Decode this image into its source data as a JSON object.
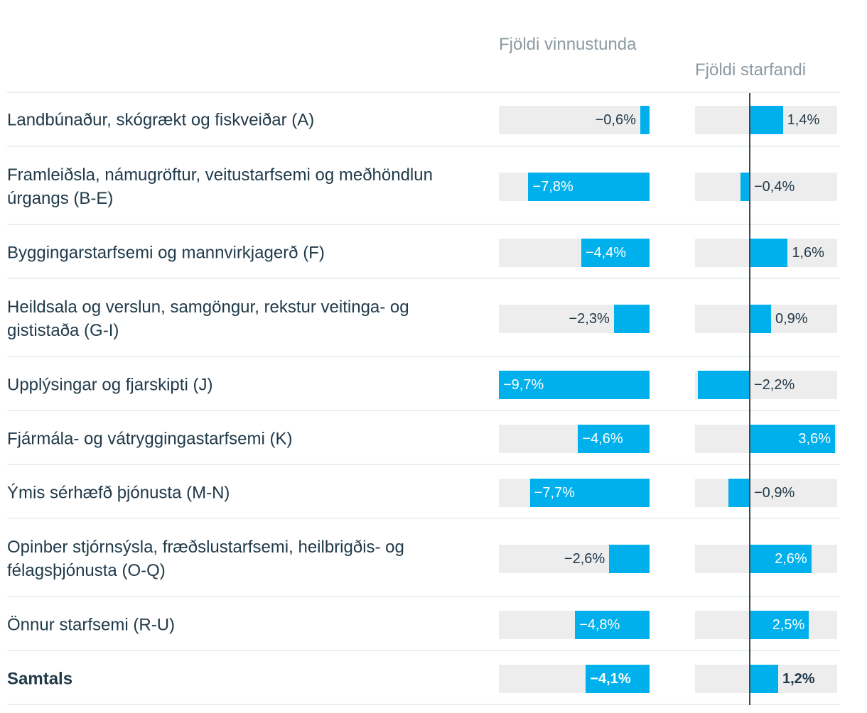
{
  "chart_data": {
    "type": "bar",
    "orientation": "horizontal",
    "columns": [
      {
        "key": "hours",
        "title": "Fjöldi vinnustunda"
      },
      {
        "key": "workers",
        "title": "Fjöldi starfandi"
      }
    ],
    "rows": [
      {
        "label": "Landbúnaður, skógrækt og fiskveiðar (A)",
        "hours": -0.6,
        "hours_label": "−0,6%",
        "workers": 1.4,
        "workers_label": "1,4%",
        "bold": false
      },
      {
        "label": "Framleiðsla, námugröftur, veitustarfsemi og meðhöndlun úrgangs (B-E)",
        "hours": -7.8,
        "hours_label": "−7,8%",
        "workers": -0.4,
        "workers_label": "−0,4%",
        "bold": false
      },
      {
        "label": "Byggingarstarfsemi og mannvirkjagerð (F)",
        "hours": -4.4,
        "hours_label": "−4,4%",
        "workers": 1.6,
        "workers_label": "1,6%",
        "bold": false
      },
      {
        "label": "Heildsala og verslun, samgöngur, rekstur veitinga- og gististaða (G-I)",
        "hours": -2.3,
        "hours_label": "−2,3%",
        "workers": 0.9,
        "workers_label": "0,9%",
        "bold": false
      },
      {
        "label": "Upplýsingar og fjarskipti (J)",
        "hours": -9.7,
        "hours_label": "−9,7%",
        "workers": -2.2,
        "workers_label": "−2,2%",
        "bold": false
      },
      {
        "label": "Fjármála- og vátryggingastarfsemi (K)",
        "hours": -4.6,
        "hours_label": "−4,6%",
        "workers": 3.6,
        "workers_label": "3,6%",
        "bold": false
      },
      {
        "label": "Ýmis sérhæfð þjónusta (M-N)",
        "hours": -7.7,
        "hours_label": "−7,7%",
        "workers": -0.9,
        "workers_label": "−0,9%",
        "bold": false
      },
      {
        "label": "Opinber stjórnsýsla, fræðslustarfsemi, heilbrigðis- og félagsþjónusta (O-Q)",
        "hours": -2.6,
        "hours_label": "−2,6%",
        "workers": 2.6,
        "workers_label": "2,6%",
        "bold": false
      },
      {
        "label": "Önnur starfsemi (R-U)",
        "hours": -4.8,
        "hours_label": "−4,8%",
        "workers": 2.5,
        "workers_label": "2,5%",
        "bold": false
      },
      {
        "label": "Samtals",
        "hours": -4.1,
        "hours_label": "−4,1%",
        "workers": 1.2,
        "workers_label": "1,2%",
        "bold": true
      }
    ],
    "colors": {
      "bar": "#00b0ec",
      "track": "#ededed",
      "zero_line": "#3b4a52",
      "text": "#213a4a",
      "header": "#8c9aa2"
    }
  }
}
